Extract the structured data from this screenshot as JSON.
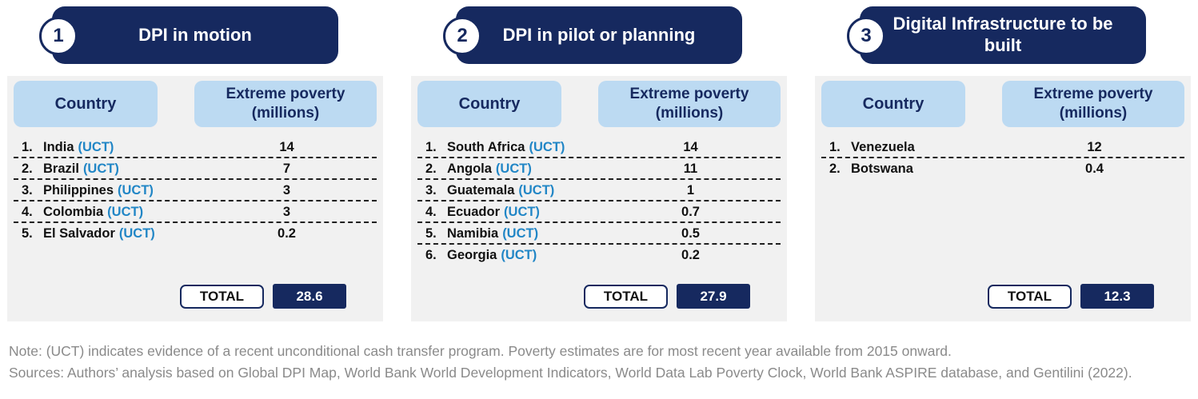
{
  "colors": {
    "navy": "#16295F",
    "header_chip_blue": "#BCDAF2",
    "uct_blue": "#2186C6",
    "panel_gray": "#F1F1F1",
    "note_gray": "#8A8A8A"
  },
  "panels": [
    {
      "number": "1",
      "title": "DPI in motion",
      "col_country": "Country",
      "col_value_line1": "Extreme poverty",
      "col_value_line2": "(millions)",
      "rows": [
        {
          "rank": "1.",
          "name": "India",
          "uct": "(UCT)",
          "value": "14"
        },
        {
          "rank": "2.",
          "name": "Brazil",
          "uct": "(UCT)",
          "value": "7"
        },
        {
          "rank": "3.",
          "name": "Philippines",
          "uct": "(UCT)",
          "value": "3"
        },
        {
          "rank": "4.",
          "name": "Colombia",
          "uct": "(UCT)",
          "value": "3"
        },
        {
          "rank": "5.",
          "name": "El Salvador",
          "uct": "(UCT)",
          "value": "0.2"
        }
      ],
      "total_label": "TOTAL",
      "total_value": "28.6"
    },
    {
      "number": "2",
      "title": "DPI in pilot or planning",
      "col_country": "Country",
      "col_value_line1": "Extreme poverty",
      "col_value_line2": "(millions)",
      "rows": [
        {
          "rank": "1.",
          "name": "South Africa",
          "uct": "(UCT)",
          "value": "14"
        },
        {
          "rank": "2.",
          "name": "Angola",
          "uct": "(UCT)",
          "value": "11"
        },
        {
          "rank": "3.",
          "name": "Guatemala",
          "uct": "(UCT)",
          "value": "1"
        },
        {
          "rank": "4.",
          "name": "Ecuador",
          "uct": "(UCT)",
          "value": "0.7"
        },
        {
          "rank": "5.",
          "name": "Namibia",
          "uct": "(UCT)",
          "value": "0.5"
        },
        {
          "rank": "6.",
          "name": "Georgia",
          "uct": "(UCT)",
          "value": "0.2"
        }
      ],
      "total_label": "TOTAL",
      "total_value": "27.9"
    },
    {
      "number": "3",
      "title": "Digital Infrastructure to be built",
      "col_country": "Country",
      "col_value_line1": "Extreme poverty",
      "col_value_line2": "(millions)",
      "rows": [
        {
          "rank": "1.",
          "name": "Venezuela",
          "uct": "",
          "value": "12"
        },
        {
          "rank": "2.",
          "name": "Botswana",
          "uct": "",
          "value": "0.4"
        }
      ],
      "total_label": "TOTAL",
      "total_value": "12.3"
    }
  ],
  "notes": {
    "note": "Note: (UCT) indicates evidence of a recent unconditional cash transfer program. Poverty estimates are for most recent year available from 2015 onward.",
    "sources": "Sources: Authors’ analysis based on Global DPI Map, World Bank World Development Indicators, World Data Lab Poverty Clock, World Bank ASPIRE database, and Gentilini (2022)."
  },
  "chart_data": [
    {
      "type": "table",
      "title": "DPI in motion",
      "columns": [
        "Country",
        "Extreme poverty (millions)"
      ],
      "rows": [
        [
          "India (UCT)",
          14
        ],
        [
          "Brazil (UCT)",
          7
        ],
        [
          "Philippines (UCT)",
          3
        ],
        [
          "Colombia (UCT)",
          3
        ],
        [
          "El Salvador (UCT)",
          0.2
        ]
      ],
      "total": 28.6
    },
    {
      "type": "table",
      "title": "DPI in pilot or planning",
      "columns": [
        "Country",
        "Extreme poverty (millions)"
      ],
      "rows": [
        [
          "South Africa (UCT)",
          14
        ],
        [
          "Angola (UCT)",
          11
        ],
        [
          "Guatemala (UCT)",
          1
        ],
        [
          "Ecuador (UCT)",
          0.7
        ],
        [
          "Namibia (UCT)",
          0.5
        ],
        [
          "Georgia (UCT)",
          0.2
        ]
      ],
      "total": 27.9
    },
    {
      "type": "table",
      "title": "Digital Infrastructure to be built",
      "columns": [
        "Country",
        "Extreme poverty (millions)"
      ],
      "rows": [
        [
          "Venezuela",
          12
        ],
        [
          "Botswana",
          0.4
        ]
      ],
      "total": 12.3
    }
  ]
}
